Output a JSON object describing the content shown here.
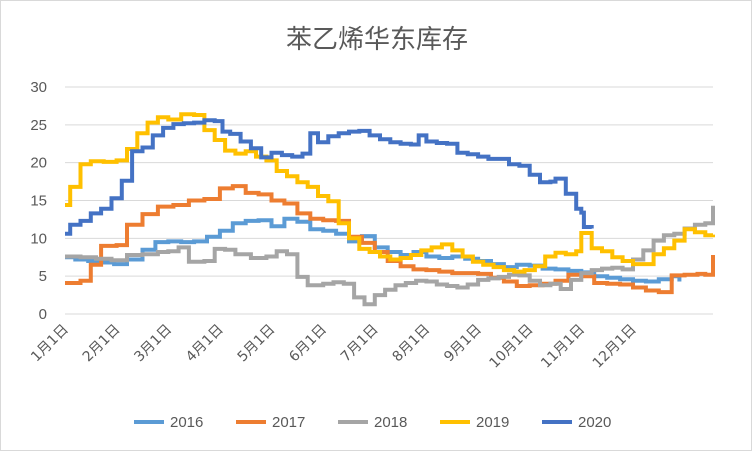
{
  "chart_data": {
    "type": "line",
    "title": "苯乙烯华东库存",
    "xlabel": "",
    "ylabel": "",
    "ylim": [
      0,
      30
    ],
    "yticks": [
      "0",
      "5",
      "10",
      "15",
      "20",
      "25",
      "30"
    ],
    "grid": true,
    "legend_position": "bottom",
    "x_labels": [
      "1月1日",
      "2月1日",
      "3月1日",
      "4月1日",
      "5月1日",
      "6月1日",
      "7月1日",
      "8月1日",
      "9月1日",
      "10月1日",
      "11月1日",
      "12月1日"
    ],
    "x_start_month": 1,
    "series": [
      {
        "name": "2016",
        "color": "#5B9BD5",
        "points": [
          [
            0,
            7.5
          ],
          [
            0.2,
            7.2
          ],
          [
            0.45,
            7.0
          ],
          [
            0.7,
            6.8
          ],
          [
            0.95,
            6.6
          ],
          [
            1.2,
            7.2
          ],
          [
            1.5,
            8.5
          ],
          [
            1.75,
            9.5
          ],
          [
            2.0,
            9.6
          ],
          [
            2.25,
            9.5
          ],
          [
            2.5,
            9.6
          ],
          [
            2.75,
            10.2
          ],
          [
            3.0,
            11.0
          ],
          [
            3.25,
            12.0
          ],
          [
            3.5,
            12.3
          ],
          [
            3.75,
            12.4
          ],
          [
            4.0,
            11.6
          ],
          [
            4.25,
            12.6
          ],
          [
            4.5,
            12.2
          ],
          [
            4.75,
            11.2
          ],
          [
            5.0,
            11.0
          ],
          [
            5.25,
            10.6
          ],
          [
            5.5,
            9.6
          ],
          [
            5.75,
            10.3
          ],
          [
            6.0,
            8.8
          ],
          [
            6.25,
            8.2
          ],
          [
            6.5,
            7.8
          ],
          [
            6.75,
            8.2
          ],
          [
            7.0,
            7.6
          ],
          [
            7.25,
            7.4
          ],
          [
            7.5,
            7.6
          ],
          [
            7.75,
            7.3
          ],
          [
            8.0,
            7.0
          ],
          [
            8.25,
            6.6
          ],
          [
            8.5,
            6.2
          ],
          [
            8.75,
            6.5
          ],
          [
            9.0,
            6.4
          ],
          [
            9.25,
            6.0
          ],
          [
            9.5,
            5.9
          ],
          [
            9.75,
            5.7
          ],
          [
            10.0,
            5.5
          ],
          [
            10.25,
            5.0
          ],
          [
            10.5,
            4.8
          ],
          [
            10.75,
            4.6
          ],
          [
            11.0,
            4.4
          ],
          [
            11.25,
            4.3
          ],
          [
            11.5,
            4.6
          ],
          [
            11.75,
            5.0
          ],
          [
            11.9,
            4.3
          ]
        ]
      },
      {
        "name": "2017",
        "color": "#ED7D31",
        "points": [
          [
            0,
            4.1
          ],
          [
            0.3,
            4.4
          ],
          [
            0.5,
            6.5
          ],
          [
            0.7,
            9.0
          ],
          [
            1.0,
            9.1
          ],
          [
            1.2,
            11.8
          ],
          [
            1.5,
            13.2
          ],
          [
            1.8,
            14.2
          ],
          [
            2.1,
            14.4
          ],
          [
            2.4,
            15.0
          ],
          [
            2.7,
            15.2
          ],
          [
            3.0,
            16.6
          ],
          [
            3.25,
            16.9
          ],
          [
            3.5,
            16.0
          ],
          [
            3.75,
            15.8
          ],
          [
            4.0,
            15.0
          ],
          [
            4.25,
            14.6
          ],
          [
            4.5,
            13.3
          ],
          [
            4.75,
            12.6
          ],
          [
            5.0,
            12.4
          ],
          [
            5.25,
            12.3
          ],
          [
            5.5,
            10.2
          ],
          [
            5.75,
            9.4
          ],
          [
            6.0,
            8.2
          ],
          [
            6.25,
            7.0
          ],
          [
            6.5,
            6.3
          ],
          [
            6.75,
            5.9
          ],
          [
            7.0,
            5.8
          ],
          [
            7.25,
            5.6
          ],
          [
            7.5,
            5.4
          ],
          [
            7.75,
            5.4
          ],
          [
            8.0,
            5.3
          ],
          [
            8.25,
            4.8
          ],
          [
            8.5,
            4.3
          ],
          [
            8.75,
            3.7
          ],
          [
            9.0,
            3.8
          ],
          [
            9.25,
            4.0
          ],
          [
            9.5,
            4.4
          ],
          [
            9.75,
            5.2
          ],
          [
            10.0,
            5.0
          ],
          [
            10.25,
            4.1
          ],
          [
            10.5,
            4.0
          ],
          [
            10.75,
            3.9
          ],
          [
            11.0,
            3.5
          ],
          [
            11.25,
            3.1
          ],
          [
            11.5,
            2.9
          ],
          [
            11.75,
            5.1
          ],
          [
            12.0,
            5.2
          ],
          [
            12.25,
            5.3
          ],
          [
            12.4,
            5.2
          ],
          [
            12.55,
            7.8
          ]
        ]
      },
      {
        "name": "2018",
        "color": "#A5A5A5",
        "points": [
          [
            0,
            7.6
          ],
          [
            0.3,
            7.5
          ],
          [
            0.6,
            7.3
          ],
          [
            0.9,
            7.1
          ],
          [
            1.2,
            7.8
          ],
          [
            1.5,
            7.9
          ],
          [
            1.8,
            8.2
          ],
          [
            2.0,
            8.3
          ],
          [
            2.2,
            8.8
          ],
          [
            2.4,
            6.9
          ],
          [
            2.7,
            7.0
          ],
          [
            2.9,
            8.6
          ],
          [
            3.1,
            8.5
          ],
          [
            3.3,
            7.9
          ],
          [
            3.6,
            7.4
          ],
          [
            3.9,
            7.6
          ],
          [
            4.1,
            8.3
          ],
          [
            4.3,
            7.9
          ],
          [
            4.5,
            4.9
          ],
          [
            4.7,
            3.8
          ],
          [
            5.0,
            4.0
          ],
          [
            5.2,
            4.2
          ],
          [
            5.4,
            4.0
          ],
          [
            5.6,
            2.2
          ],
          [
            5.8,
            1.3
          ],
          [
            6.0,
            2.5
          ],
          [
            6.2,
            3.2
          ],
          [
            6.4,
            3.8
          ],
          [
            6.6,
            4.1
          ],
          [
            6.8,
            4.4
          ],
          [
            7.0,
            4.3
          ],
          [
            7.2,
            3.9
          ],
          [
            7.4,
            3.7
          ],
          [
            7.6,
            3.5
          ],
          [
            7.8,
            3.9
          ],
          [
            8.0,
            4.5
          ],
          [
            8.2,
            4.7
          ],
          [
            8.4,
            4.9
          ],
          [
            8.6,
            5.2
          ],
          [
            8.8,
            5.1
          ],
          [
            9.0,
            4.4
          ],
          [
            9.2,
            3.8
          ],
          [
            9.4,
            4.0
          ],
          [
            9.6,
            3.3
          ],
          [
            9.8,
            4.5
          ],
          [
            10.0,
            5.4
          ],
          [
            10.2,
            5.8
          ],
          [
            10.4,
            6.0
          ],
          [
            10.6,
            6.1
          ],
          [
            10.8,
            5.9
          ],
          [
            11.0,
            7.2
          ],
          [
            11.2,
            8.4
          ],
          [
            11.4,
            9.7
          ],
          [
            11.6,
            10.4
          ],
          [
            11.8,
            10.6
          ],
          [
            12.0,
            11.3
          ],
          [
            12.2,
            11.8
          ],
          [
            12.4,
            12.0
          ],
          [
            12.55,
            14.3
          ]
        ]
      },
      {
        "name": "2019",
        "color": "#FFC000",
        "points": [
          [
            0,
            14.4
          ],
          [
            0.1,
            16.8
          ],
          [
            0.3,
            19.8
          ],
          [
            0.5,
            20.2
          ],
          [
            0.75,
            20.1
          ],
          [
            1.0,
            20.3
          ],
          [
            1.2,
            21.8
          ],
          [
            1.4,
            23.9
          ],
          [
            1.6,
            25.3
          ],
          [
            1.8,
            26.0
          ],
          [
            2.0,
            25.7
          ],
          [
            2.25,
            26.4
          ],
          [
            2.5,
            26.3
          ],
          [
            2.7,
            24.3
          ],
          [
            2.9,
            23.0
          ],
          [
            3.1,
            21.6
          ],
          [
            3.3,
            21.2
          ],
          [
            3.5,
            21.5
          ],
          [
            3.7,
            20.8
          ],
          [
            3.9,
            20.3
          ],
          [
            4.1,
            18.9
          ],
          [
            4.3,
            18.2
          ],
          [
            4.5,
            17.4
          ],
          [
            4.7,
            16.8
          ],
          [
            4.9,
            15.6
          ],
          [
            5.1,
            14.9
          ],
          [
            5.3,
            12.0
          ],
          [
            5.5,
            10.0
          ],
          [
            5.7,
            8.6
          ],
          [
            5.9,
            8.2
          ],
          [
            6.1,
            7.6
          ],
          [
            6.3,
            7.2
          ],
          [
            6.5,
            7.4
          ],
          [
            6.7,
            7.8
          ],
          [
            6.9,
            8.4
          ],
          [
            7.1,
            8.8
          ],
          [
            7.3,
            9.2
          ],
          [
            7.5,
            8.4
          ],
          [
            7.7,
            7.6
          ],
          [
            7.9,
            6.9
          ],
          [
            8.1,
            6.5
          ],
          [
            8.3,
            6.2
          ],
          [
            8.5,
            5.8
          ],
          [
            8.7,
            5.6
          ],
          [
            8.9,
            5.8
          ],
          [
            9.1,
            6.3
          ],
          [
            9.3,
            7.6
          ],
          [
            9.5,
            8.1
          ],
          [
            9.7,
            7.9
          ],
          [
            9.9,
            8.3
          ],
          [
            10.0,
            10.7
          ],
          [
            10.2,
            8.7
          ],
          [
            10.4,
            8.3
          ],
          [
            10.6,
            7.5
          ],
          [
            10.8,
            7.0
          ],
          [
            11.0,
            6.6
          ],
          [
            11.2,
            6.6
          ],
          [
            11.4,
            7.9
          ],
          [
            11.6,
            8.7
          ],
          [
            11.8,
            9.7
          ],
          [
            12.0,
            11.2
          ],
          [
            12.2,
            10.8
          ],
          [
            12.4,
            10.4
          ],
          [
            12.55,
            10.5
          ]
        ]
      },
      {
        "name": "2020",
        "color": "#4472C4",
        "points": [
          [
            0,
            10.6
          ],
          [
            0.1,
            11.8
          ],
          [
            0.3,
            12.3
          ],
          [
            0.5,
            13.3
          ],
          [
            0.7,
            13.9
          ],
          [
            0.9,
            15.3
          ],
          [
            1.1,
            17.6
          ],
          [
            1.3,
            21.5
          ],
          [
            1.5,
            22.0
          ],
          [
            1.7,
            23.6
          ],
          [
            1.9,
            24.6
          ],
          [
            2.1,
            25.1
          ],
          [
            2.3,
            25.2
          ],
          [
            2.5,
            25.3
          ],
          [
            2.7,
            25.6
          ],
          [
            2.9,
            25.5
          ],
          [
            3.05,
            24.1
          ],
          [
            3.2,
            23.8
          ],
          [
            3.4,
            22.8
          ],
          [
            3.6,
            21.9
          ],
          [
            3.8,
            20.7
          ],
          [
            4.0,
            21.3
          ],
          [
            4.2,
            21.0
          ],
          [
            4.4,
            20.8
          ],
          [
            4.6,
            21.2
          ],
          [
            4.75,
            23.9
          ],
          [
            4.9,
            22.7
          ],
          [
            5.1,
            23.5
          ],
          [
            5.3,
            23.9
          ],
          [
            5.5,
            24.1
          ],
          [
            5.7,
            24.2
          ],
          [
            5.9,
            23.6
          ],
          [
            6.1,
            23.1
          ],
          [
            6.3,
            22.7
          ],
          [
            6.5,
            22.5
          ],
          [
            6.7,
            22.4
          ],
          [
            6.85,
            23.6
          ],
          [
            7.0,
            22.8
          ],
          [
            7.2,
            22.6
          ],
          [
            7.4,
            22.5
          ],
          [
            7.6,
            21.3
          ],
          [
            7.8,
            21.1
          ],
          [
            8.0,
            20.8
          ],
          [
            8.2,
            20.5
          ],
          [
            8.4,
            20.5
          ],
          [
            8.6,
            19.8
          ],
          [
            8.8,
            19.6
          ],
          [
            9.0,
            18.4
          ],
          [
            9.2,
            17.4
          ],
          [
            9.4,
            17.5
          ],
          [
            9.5,
            17.9
          ],
          [
            9.7,
            15.9
          ],
          [
            9.9,
            13.9
          ],
          [
            10.0,
            13.4
          ],
          [
            10.05,
            11.5
          ],
          [
            10.2,
            11.3
          ]
        ]
      }
    ]
  }
}
